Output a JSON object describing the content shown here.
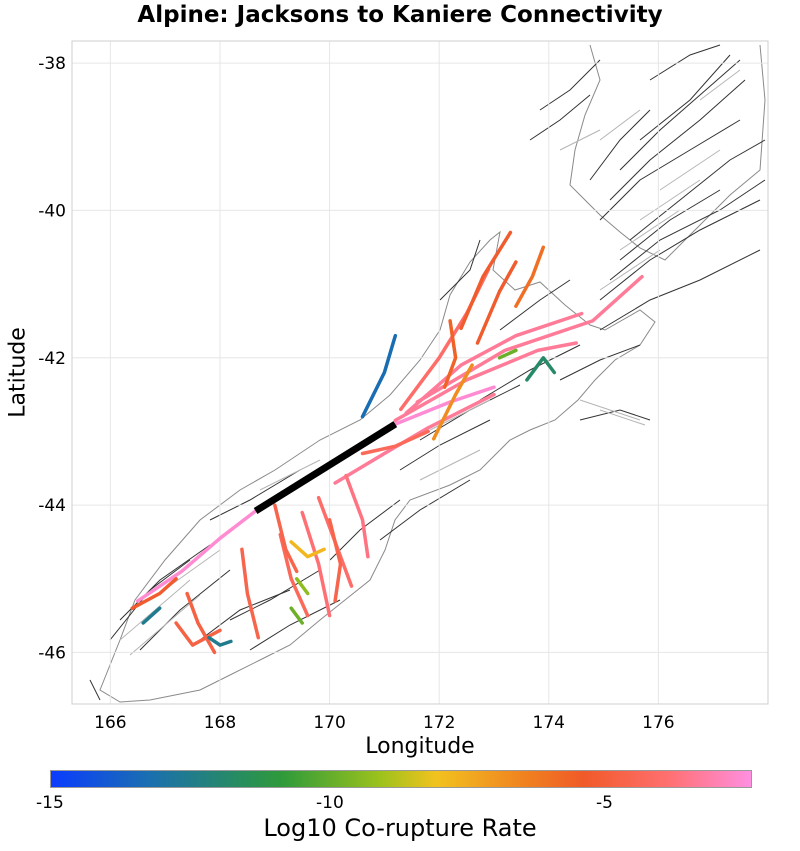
{
  "chart_data": {
    "type": "map",
    "title": "Alpine: Jacksons to Kaniere Connectivity",
    "xlabel": "Longitude",
    "ylabel": "Latitude",
    "xlim": [
      165.3,
      178.0
    ],
    "ylim": [
      -46.7,
      -37.7
    ],
    "xticks": [
      166,
      168,
      170,
      172,
      174,
      176
    ],
    "yticks": [
      -38,
      -40,
      -42,
      -44,
      -46
    ],
    "grid": true,
    "colorbar": {
      "label": "Log10 Co-rupture Rate",
      "range": [
        -15,
        -2.5
      ],
      "ticks": [
        -15,
        -10,
        -5
      ],
      "colors": [
        "#0a3cff",
        "#1a6fb0",
        "#2e9a3a",
        "#9cc21c",
        "#f2c21f",
        "#f08020",
        "#f05a28",
        "#ff6f6f",
        "#ff8fe0"
      ]
    },
    "highlight_fault": {
      "name": "Alpine: Jacksons to Kaniere",
      "color": "#000000",
      "trace": [
        [
          168.65,
          -44.08
        ],
        [
          171.2,
          -42.9
        ]
      ]
    },
    "faults": [
      {
        "rate": -2.7,
        "trace": [
          [
            166.5,
            -45.3
          ],
          [
            167.3,
            -44.9
          ],
          [
            168.0,
            -44.45
          ],
          [
            168.65,
            -44.08
          ]
        ]
      },
      {
        "rate": -2.7,
        "trace": [
          [
            171.2,
            -42.9
          ],
          [
            172.2,
            -42.6
          ],
          [
            173.0,
            -42.4
          ]
        ]
      },
      {
        "rate": -3.5,
        "trace": [
          [
            171.2,
            -42.85
          ],
          [
            172.5,
            -42.3
          ],
          [
            173.8,
            -41.9
          ],
          [
            174.5,
            -41.8
          ]
        ]
      },
      {
        "rate": -3.5,
        "trace": [
          [
            171.6,
            -42.6
          ],
          [
            173.2,
            -41.9
          ],
          [
            174.8,
            -41.5
          ],
          [
            175.7,
            -40.9
          ]
        ]
      },
      {
        "rate": -3.5,
        "trace": [
          [
            171.4,
            -42.75
          ],
          [
            172.4,
            -42.1
          ],
          [
            173.4,
            -41.7
          ],
          [
            174.6,
            -41.4
          ]
        ]
      },
      {
        "rate": -3.5,
        "trace": [
          [
            170.1,
            -43.7
          ],
          [
            171.0,
            -43.3
          ],
          [
            171.8,
            -42.95
          ],
          [
            173.0,
            -42.5
          ]
        ]
      },
      {
        "rate": -4.2,
        "trace": [
          [
            171.3,
            -42.7
          ],
          [
            172.0,
            -42.0
          ],
          [
            172.5,
            -41.4
          ],
          [
            172.9,
            -40.8
          ]
        ]
      },
      {
        "rate": -5.5,
        "trace": [
          [
            172.7,
            -41.8
          ],
          [
            173.1,
            -41.1
          ],
          [
            173.4,
            -40.7
          ]
        ]
      },
      {
        "rate": -6.5,
        "trace": [
          [
            173.4,
            -41.3
          ],
          [
            173.7,
            -40.9
          ],
          [
            173.9,
            -40.5
          ]
        ]
      },
      {
        "rate": -5.5,
        "trace": [
          [
            172.4,
            -41.6
          ],
          [
            172.8,
            -40.9
          ],
          [
            173.3,
            -40.3
          ]
        ]
      },
      {
        "rate": -4.0,
        "trace": [
          [
            169.5,
            -44.1
          ],
          [
            169.8,
            -44.8
          ],
          [
            170.0,
            -45.5
          ]
        ]
      },
      {
        "rate": -4.5,
        "trace": [
          [
            169.1,
            -44.4
          ],
          [
            169.3,
            -45.0
          ],
          [
            169.6,
            -45.5
          ]
        ]
      },
      {
        "rate": -4.2,
        "trace": [
          [
            169.8,
            -43.9
          ],
          [
            170.1,
            -44.5
          ],
          [
            170.4,
            -45.1
          ]
        ]
      },
      {
        "rate": -3.8,
        "trace": [
          [
            170.3,
            -43.6
          ],
          [
            170.6,
            -44.2
          ],
          [
            170.7,
            -44.7
          ]
        ]
      },
      {
        "rate": -4.8,
        "trace": [
          [
            168.4,
            -44.6
          ],
          [
            168.5,
            -45.2
          ],
          [
            168.7,
            -45.8
          ]
        ]
      },
      {
        "rate": -5.0,
        "trace": [
          [
            167.4,
            -45.2
          ],
          [
            167.6,
            -45.6
          ],
          [
            167.9,
            -46.0
          ]
        ]
      },
      {
        "rate": -5.5,
        "trace": [
          [
            166.4,
            -45.4
          ],
          [
            166.9,
            -45.2
          ],
          [
            167.2,
            -45.0
          ]
        ]
      },
      {
        "rate": -5.0,
        "trace": [
          [
            167.2,
            -45.6
          ],
          [
            167.5,
            -45.9
          ],
          [
            168.0,
            -45.7
          ]
        ]
      },
      {
        "rate": -8.5,
        "trace": [
          [
            169.3,
            -44.5
          ],
          [
            169.6,
            -44.7
          ],
          [
            169.9,
            -44.6
          ]
        ]
      },
      {
        "rate": -10.5,
        "trace": [
          [
            169.4,
            -45.0
          ],
          [
            169.6,
            -45.2
          ]
        ]
      },
      {
        "rate": -11.0,
        "trace": [
          [
            169.3,
            -45.4
          ],
          [
            169.5,
            -45.6
          ]
        ]
      },
      {
        "rate": -13.5,
        "trace": [
          [
            170.6,
            -42.8
          ],
          [
            171.0,
            -42.2
          ],
          [
            171.2,
            -41.7
          ]
        ]
      },
      {
        "rate": -13.0,
        "trace": [
          [
            166.6,
            -45.6
          ],
          [
            166.9,
            -45.4
          ]
        ]
      },
      {
        "rate": -13.0,
        "trace": [
          [
            167.8,
            -45.8
          ],
          [
            168.0,
            -45.9
          ],
          [
            168.2,
            -45.85
          ]
        ]
      },
      {
        "rate": -12.5,
        "trace": [
          [
            173.6,
            -42.3
          ],
          [
            173.9,
            -42.0
          ],
          [
            174.1,
            -42.2
          ]
        ]
      },
      {
        "rate": -11.0,
        "trace": [
          [
            173.1,
            -42.0
          ],
          [
            173.4,
            -41.9
          ]
        ]
      },
      {
        "rate": -7.5,
        "trace": [
          [
            171.9,
            -43.1
          ],
          [
            172.3,
            -42.5
          ],
          [
            172.6,
            -42.1
          ]
        ]
      },
      {
        "rate": -6.0,
        "trace": [
          [
            172.2,
            -41.5
          ],
          [
            172.3,
            -42.0
          ],
          [
            172.1,
            -42.4
          ]
        ]
      },
      {
        "rate": -4.5,
        "trace": [
          [
            170.6,
            -43.3
          ],
          [
            171.2,
            -43.2
          ],
          [
            171.8,
            -43.0
          ]
        ]
      },
      {
        "rate": -4.8,
        "trace": [
          [
            170.0,
            -44.2
          ],
          [
            170.2,
            -44.8
          ],
          [
            170.1,
            -45.3
          ]
        ]
      },
      {
        "rate": -4.8,
        "trace": [
          [
            169.0,
            -44.0
          ],
          [
            169.2,
            -44.6
          ],
          [
            169.4,
            -44.9
          ]
        ]
      }
    ]
  }
}
